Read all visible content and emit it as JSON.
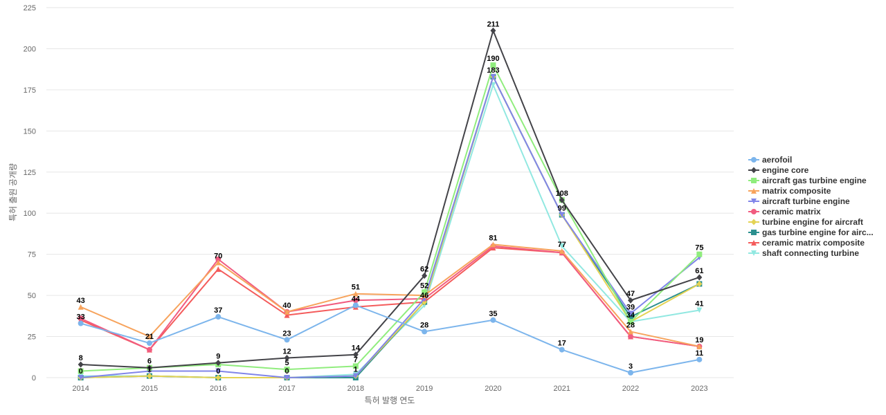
{
  "chart_data": {
    "type": "line",
    "xlabel": "특허 발행 연도",
    "ylabel": "특허 출원 공개량",
    "ylim": [
      0,
      225
    ],
    "yticks": [
      0,
      25,
      50,
      75,
      100,
      125,
      150,
      175,
      200,
      225
    ],
    "grid": true,
    "legend_position": "right",
    "categories": [
      "2014",
      "2015",
      "2016",
      "2017",
      "2018",
      "2019",
      "2020",
      "2021",
      "2022",
      "2023"
    ],
    "series": [
      {
        "name": "aerofoil",
        "color": "#7cb5ec",
        "marker": "circle",
        "values": [
          33,
          21,
          37,
          23,
          44,
          28,
          35,
          17,
          3,
          11
        ],
        "label_values": true
      },
      {
        "name": "engine core",
        "color": "#434348",
        "marker": "diamond",
        "values": [
          8,
          6,
          9,
          12,
          14,
          62,
          211,
          108,
          47,
          61
        ],
        "label_values": true
      },
      {
        "name": "aircraft gas turbine engine",
        "color": "#90ed7d",
        "marker": "square",
        "values": [
          4,
          6,
          8,
          5,
          7,
          52,
          190,
          108,
          34,
          75
        ],
        "label_values": true
      },
      {
        "name": "matrix composite",
        "color": "#f7a35c",
        "marker": "triangle",
        "values": [
          43,
          25,
          70,
          40,
          51,
          50,
          81,
          77,
          28,
          19
        ],
        "label_values": true
      },
      {
        "name": "aircraft turbine engine",
        "color": "#8085e9",
        "marker": "triangle-down",
        "values": [
          0,
          4,
          4,
          0,
          1,
          48,
          183,
          99,
          39,
          73
        ],
        "label_values": false
      },
      {
        "name": "ceramic matrix",
        "color": "#f15c80",
        "marker": "circle",
        "values": [
          36,
          17,
          72,
          40,
          47,
          48,
          80,
          76,
          25,
          19
        ],
        "label_values": false
      },
      {
        "name": "turbine engine for aircraft",
        "color": "#e4d354",
        "marker": "diamond",
        "values": [
          0,
          1,
          0,
          0,
          1,
          46,
          183,
          99,
          34,
          57
        ],
        "label_values": false
      },
      {
        "name": "gas turbine engine for airc...",
        "color": "#2b908f",
        "marker": "square",
        "values": [
          0,
          1,
          0,
          0,
          0,
          46,
          183,
          99,
          37,
          57
        ],
        "label_values": false
      },
      {
        "name": "ceramic matrix composite",
        "color": "#f45b5b",
        "marker": "triangle",
        "values": [
          35,
          17,
          66,
          38,
          43,
          46,
          79,
          76,
          25,
          19
        ],
        "label_values": false
      },
      {
        "name": "shaft connecting turbine",
        "color": "#91e8e1",
        "marker": "triangle-down",
        "values": [
          1,
          1,
          0,
          0,
          2,
          44,
          178,
          80,
          34,
          41
        ],
        "label_values": true
      }
    ],
    "data_labels": [
      {
        "x": "2014",
        "text": "43",
        "y": 43
      },
      {
        "x": "2014",
        "text": "33",
        "y": 33
      },
      {
        "x": "2014",
        "text": "8",
        "y": 8
      },
      {
        "x": "2014",
        "text": "0",
        "y": 0
      },
      {
        "x": "2015",
        "text": "21",
        "y": 21
      },
      {
        "x": "2015",
        "text": "6",
        "y": 6
      },
      {
        "x": "2015",
        "text": "1",
        "y": 1
      },
      {
        "x": "2016",
        "text": "70",
        "y": 70
      },
      {
        "x": "2016",
        "text": "37",
        "y": 37
      },
      {
        "x": "2016",
        "text": "9",
        "y": 9
      },
      {
        "x": "2016",
        "text": "0",
        "y": 0
      },
      {
        "x": "2017",
        "text": "40",
        "y": 40
      },
      {
        "x": "2017",
        "text": "23",
        "y": 23
      },
      {
        "x": "2017",
        "text": "12",
        "y": 12
      },
      {
        "x": "2017",
        "text": "5",
        "y": 5
      },
      {
        "x": "2017",
        "text": "0",
        "y": 0
      },
      {
        "x": "2018",
        "text": "51",
        "y": 51
      },
      {
        "x": "2018",
        "text": "44",
        "y": 44
      },
      {
        "x": "2018",
        "text": "14",
        "y": 14
      },
      {
        "x": "2018",
        "text": "7",
        "y": 7
      },
      {
        "x": "2018",
        "text": "1",
        "y": 1
      },
      {
        "x": "2019",
        "text": "62",
        "y": 62
      },
      {
        "x": "2019",
        "text": "52",
        "y": 52
      },
      {
        "x": "2019",
        "text": "46",
        "y": 46
      },
      {
        "x": "2019",
        "text": "28",
        "y": 28
      },
      {
        "x": "2020",
        "text": "211",
        "y": 211
      },
      {
        "x": "2020",
        "text": "190",
        "y": 190
      },
      {
        "x": "2020",
        "text": "183",
        "y": 183
      },
      {
        "x": "2020",
        "text": "81",
        "y": 81
      },
      {
        "x": "2020",
        "text": "35",
        "y": 35
      },
      {
        "x": "2021",
        "text": "108",
        "y": 108
      },
      {
        "x": "2021",
        "text": "99",
        "y": 99
      },
      {
        "x": "2021",
        "text": "77",
        "y": 77
      },
      {
        "x": "2021",
        "text": "17",
        "y": 17
      },
      {
        "x": "2022",
        "text": "47",
        "y": 47
      },
      {
        "x": "2022",
        "text": "39",
        "y": 39
      },
      {
        "x": "2022",
        "text": "34",
        "y": 34
      },
      {
        "x": "2022",
        "text": "28",
        "y": 28
      },
      {
        "x": "2022",
        "text": "3",
        "y": 3
      },
      {
        "x": "2023",
        "text": "75",
        "y": 75
      },
      {
        "x": "2023",
        "text": "61",
        "y": 61
      },
      {
        "x": "2023",
        "text": "41",
        "y": 41
      },
      {
        "x": "2023",
        "text": "19",
        "y": 19
      },
      {
        "x": "2023",
        "text": "11",
        "y": 11
      }
    ]
  }
}
